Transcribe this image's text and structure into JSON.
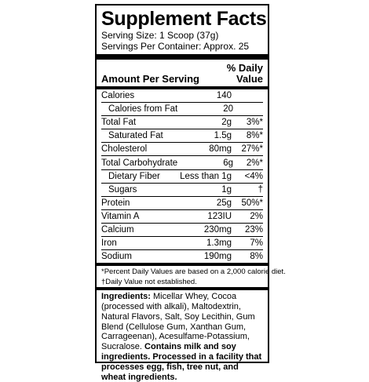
{
  "title": "Supplement Facts",
  "serving_size": "Serving Size: 1 Scoop (37g)",
  "servings_per_container": "Servings Per Container: Approx. 25",
  "header": {
    "amount_per_serving": "Amount Per Serving",
    "daily_value_line1": "% Daily",
    "daily_value_line2": "Value"
  },
  "rows": [
    {
      "name": "Calories",
      "amount": "140",
      "dv": ""
    },
    {
      "name": "Calories from Fat",
      "amount": "20",
      "dv": ""
    },
    {
      "name": "Total Fat",
      "amount": "2g",
      "dv": "3%*"
    },
    {
      "name": "Saturated Fat",
      "amount": "1.5g",
      "dv": "8%*"
    },
    {
      "name": "Cholesterol",
      "amount": "80mg",
      "dv": "27%*"
    },
    {
      "name": "Total Carbohydrate",
      "amount": "6g",
      "dv": "2%*"
    },
    {
      "name": "Dietary Fiber",
      "amount": "Less than 1g",
      "dv": "<4%"
    },
    {
      "name": "Sugars",
      "amount": "1g",
      "dv": "†"
    },
    {
      "name": "Protein",
      "amount": "25g",
      "dv": "50%*"
    },
    {
      "name": "Vitamin A",
      "amount": "123IU",
      "dv": "2%"
    },
    {
      "name": "Calcium",
      "amount": "230mg",
      "dv": "23%"
    },
    {
      "name": "Iron",
      "amount": "1.3mg",
      "dv": "7%"
    },
    {
      "name": "Sodium",
      "amount": "190mg",
      "dv": "8%"
    }
  ],
  "footnotes": {
    "line1": "*Percent Daily Values are based on a 2,000 calorie diet.",
    "line2": "†Daily Value not established."
  },
  "ingredients": {
    "label": "Ingredients:",
    "text": " Micellar Whey, Cocoa (processed with alkali), Maltodextrin, Natural Flavors, Salt, Soy Lecithin, Gum Blend (Cellulose Gum, Xanthan Gum, Carrageenan), Acesulfame-Potassium, Sucralose. ",
    "allergen": "Contains milk and soy ingredients. Processed in a facility that processes egg, fish, tree nut, and wheat ingredients."
  }
}
